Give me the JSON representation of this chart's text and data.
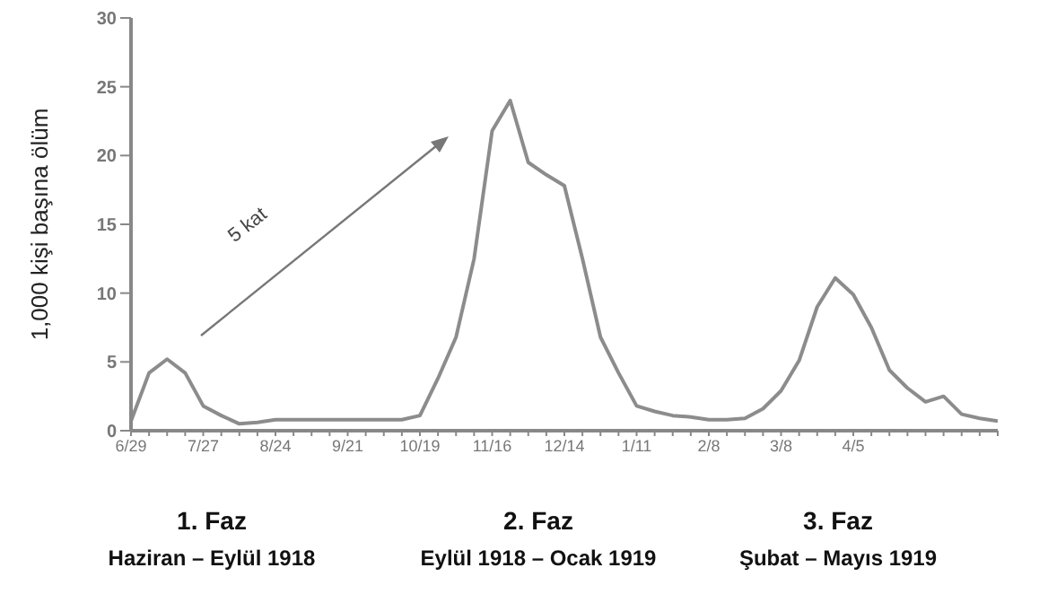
{
  "chart_data": {
    "type": "line",
    "ylabel": "1,000 kişi başına ölüm",
    "categories": [
      "6/29",
      null,
      null,
      null,
      "7/27",
      null,
      null,
      null,
      "8/24",
      null,
      null,
      null,
      "9/21",
      null,
      null,
      null,
      "10/19",
      null,
      null,
      null,
      "11/16",
      null,
      null,
      null,
      "12/14",
      null,
      null,
      null,
      "1/11",
      null,
      null,
      null,
      "2/8",
      null,
      null,
      null,
      "3/8",
      null,
      null,
      null,
      "4/5",
      null,
      null,
      null,
      null,
      null,
      null,
      null,
      null
    ],
    "series": [
      {
        "color": "#8c8c8c",
        "values": [
          0.7,
          4.2,
          5.2,
          4.2,
          1.8,
          1.1,
          0.5,
          0.6,
          0.8,
          0.8,
          0.8,
          0.8,
          0.8,
          0.8,
          0.8,
          0.8,
          1.1,
          3.8,
          6.8,
          12.5,
          21.8,
          24,
          19.5,
          18.6,
          17.8,
          12.5,
          6.8,
          4.2,
          1.8,
          1.4,
          1.1,
          1.0,
          0.8,
          0.8,
          0.9,
          1.6,
          2.9,
          5.1,
          9.0,
          11.1,
          9.9,
          7.5,
          4.4,
          3.1,
          2.1,
          2.5,
          1.2,
          0.9,
          0.7
        ]
      }
    ],
    "ylim": [
      0,
      30
    ],
    "yticks": [
      0,
      5,
      10,
      15,
      20,
      25,
      30
    ],
    "grid": false,
    "legend": false,
    "marker": "none",
    "line_style": "solid",
    "annotations": [
      "5 kat",
      "1. Faz",
      "Haziran – Eylül 1918",
      "2. Faz",
      "Eylül 1918 – Ocak 1919",
      "3. Faz",
      "Şubat – Mayıs 1919"
    ]
  }
}
